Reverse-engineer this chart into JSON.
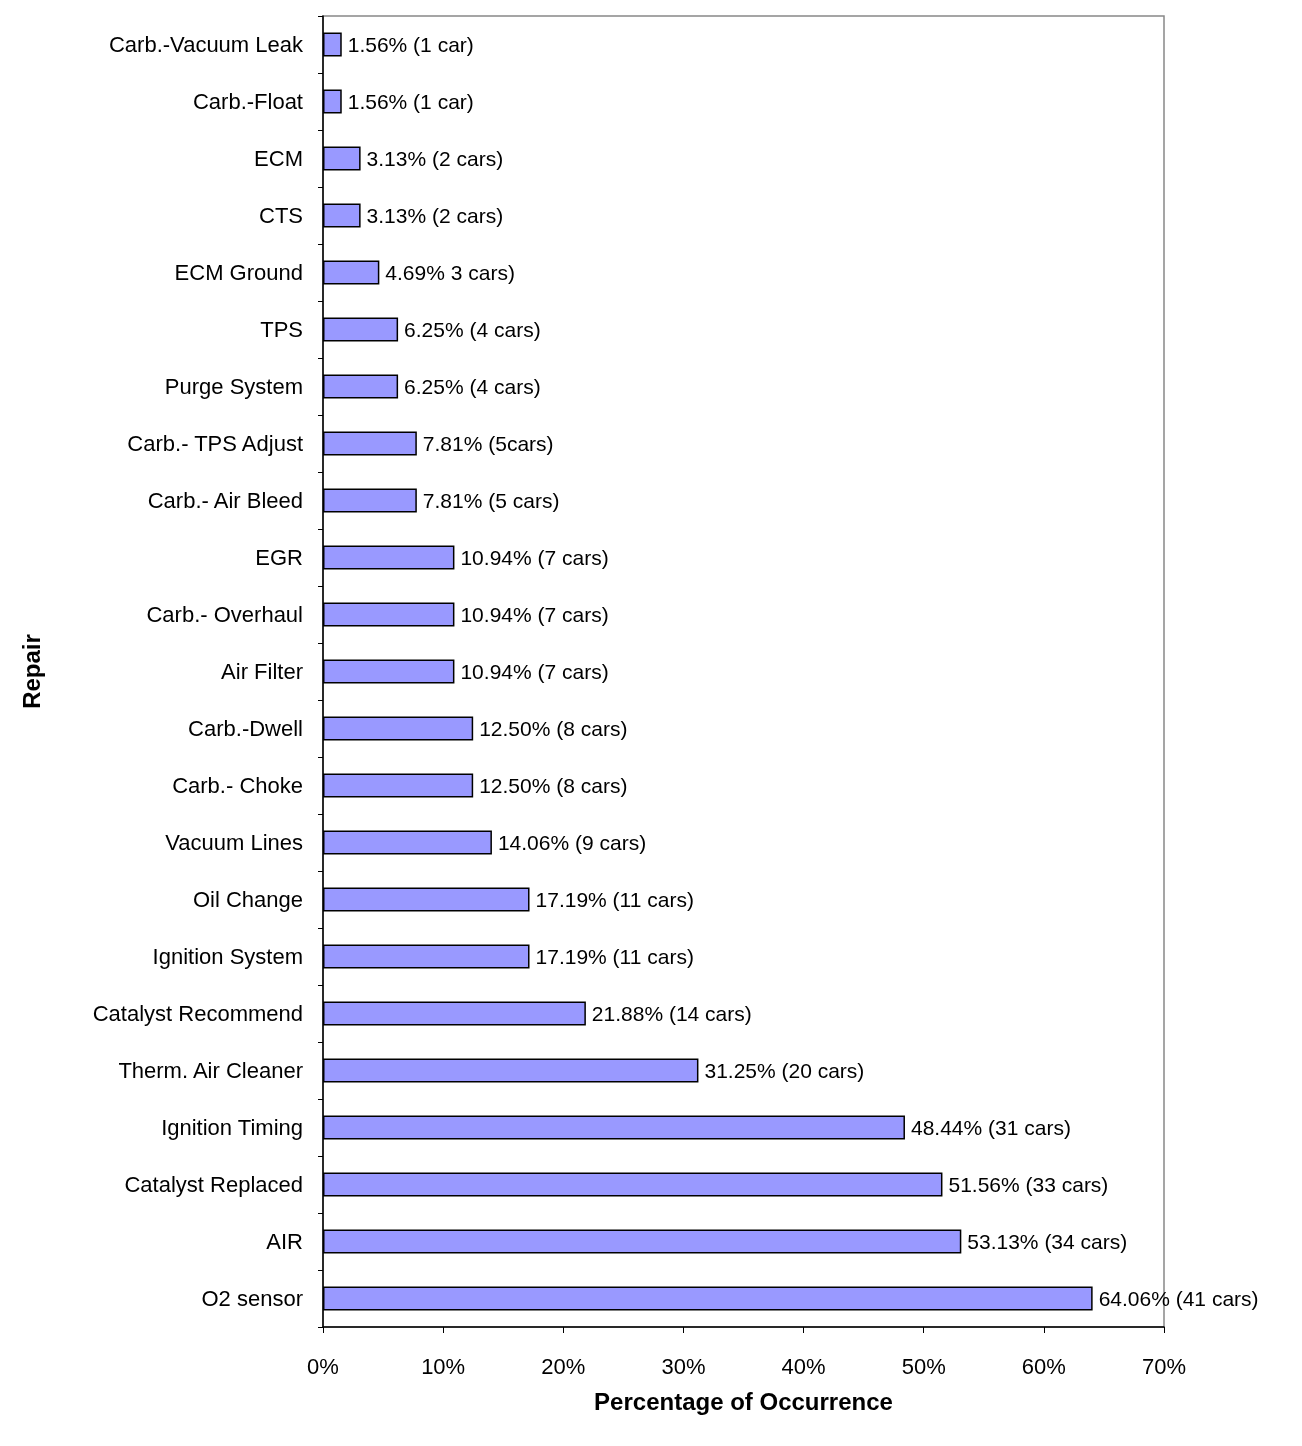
{
  "chart_data": {
    "type": "bar",
    "orientation": "horizontal",
    "xlabel": "Percentage of Occurrence",
    "ylabel": "Repair",
    "categories": [
      "Carb.-Vacuum Leak",
      "Carb.-Float",
      "ECM",
      "CTS",
      "ECM Ground",
      "TPS",
      "Purge System",
      "Carb.- TPS Adjust",
      "Carb.- Air Bleed",
      "EGR",
      "Carb.- Overhaul",
      "Air Filter",
      "Carb.-Dwell",
      "Carb.- Choke",
      "Vacuum Lines",
      "Oil Change",
      "Ignition System",
      "Catalyst Recommend",
      "Therm. Air Cleaner",
      "Ignition Timing",
      "Catalyst Replaced",
      "AIR",
      "O2 sensor"
    ],
    "values": [
      1.56,
      1.56,
      3.13,
      3.13,
      4.69,
      6.25,
      6.25,
      7.81,
      7.81,
      10.94,
      10.94,
      10.94,
      12.5,
      12.5,
      14.06,
      17.19,
      17.19,
      21.88,
      31.25,
      48.44,
      51.56,
      53.13,
      64.06
    ],
    "value_labels": [
      "1.56% (1 car)",
      "1.56% (1 car)",
      "3.13% (2 cars)",
      "3.13% (2 cars)",
      "4.69% 3 cars)",
      "6.25% (4 cars)",
      "6.25% (4 cars)",
      "7.81% (5cars)",
      "7.81% (5 cars)",
      "10.94% (7 cars)",
      "10.94% (7 cars)",
      "10.94% (7 cars)",
      "12.50% (8 cars)",
      "12.50% (8 cars)",
      "14.06% (9 cars)",
      "17.19% (11 cars)",
      "17.19% (11 cars)",
      "21.88% (14 cars)",
      "31.25% (20 cars)",
      "48.44% (31 cars)",
      "51.56% (33 cars)",
      "53.13% (34 cars)",
      "64.06% (41 cars)"
    ],
    "color": "#9999ff",
    "xlim": [
      0,
      70
    ],
    "xticks": [
      {
        "value": 0,
        "label": "0%"
      },
      {
        "value": 10,
        "label": "10%"
      },
      {
        "value": 20,
        "label": "20%"
      },
      {
        "value": 30,
        "label": "30%"
      },
      {
        "value": 40,
        "label": "40%"
      },
      {
        "value": 50,
        "label": "50%"
      },
      {
        "value": 60,
        "label": "60%"
      },
      {
        "value": 70,
        "label": "70%"
      }
    ],
    "grid": false
  }
}
